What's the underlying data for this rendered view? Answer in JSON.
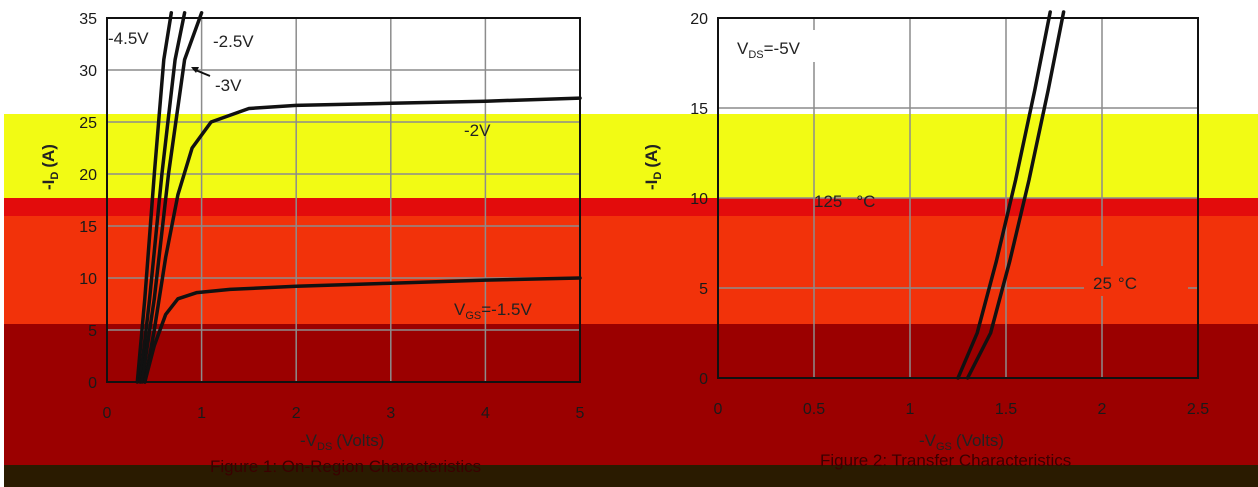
{
  "colors": {
    "band_yellow": "#f2fb14",
    "band_red": "#f2320a",
    "band_red_top": "#e30c0c",
    "band_dark": "#9b0000",
    "band_black": "#2a1b00",
    "curve": "#111111",
    "grid": "#8c8c8c"
  },
  "chart_data": [
    {
      "type": "line",
      "xlabel": "-V",
      "xlabel_sub": "DS",
      "xlabel_unit": "(Volts)",
      "ylabel": "-I",
      "ylabel_sub": "D",
      "ylabel_unit": "(A)",
      "xlim": [
        0,
        5
      ],
      "ylim": [
        0,
        35
      ],
      "x_ticks": [
        "0",
        "1",
        "2",
        "3",
        "4",
        "5"
      ],
      "y_ticks": [
        "0",
        "5",
        "10",
        "15",
        "20",
        "25",
        "30",
        "35"
      ],
      "grid": true,
      "annotations": [
        "-4.5V",
        "-2.5V",
        "-3V",
        "-2V",
        "V",
        "GS",
        "=-1.5V"
      ],
      "caption": "Figure 1: On-Region Characteristics",
      "series": [
        {
          "name": "-4.5V",
          "x": [
            0.32,
            0.4,
            0.5,
            0.6,
            0.68
          ],
          "y": [
            0,
            8,
            20,
            31,
            36
          ]
        },
        {
          "name": "-3V",
          "x": [
            0.35,
            0.45,
            0.58,
            0.72,
            0.82
          ],
          "y": [
            0,
            8,
            20,
            31,
            36
          ]
        },
        {
          "name": "-2.5V",
          "x": [
            0.37,
            0.5,
            0.65,
            0.82,
            1.0
          ],
          "y": [
            0,
            8,
            20,
            31,
            36
          ]
        },
        {
          "name": "-2V",
          "x": [
            0.4,
            0.5,
            0.62,
            0.75,
            0.9,
            1.1,
            1.5,
            2.0,
            3.0,
            4.0,
            5.0
          ],
          "y": [
            0,
            5,
            12,
            18,
            22.5,
            25,
            26.3,
            26.6,
            26.8,
            27.0,
            27.3
          ]
        },
        {
          "name": "=-1.5V",
          "x": [
            0.4,
            0.5,
            0.62,
            0.75,
            0.95,
            1.3,
            2.0,
            3.0,
            4.0,
            5.0
          ],
          "y": [
            0,
            3.5,
            6.5,
            8.0,
            8.6,
            8.9,
            9.2,
            9.5,
            9.8,
            10.0
          ]
        }
      ]
    },
    {
      "type": "line",
      "xlabel": "-V",
      "xlabel_sub": "GS",
      "xlabel_unit": "(Volts)",
      "ylabel": "-I",
      "ylabel_sub": "D",
      "ylabel_unit": "(A)",
      "xlim": [
        0,
        2.5
      ],
      "ylim": [
        0,
        20
      ],
      "x_ticks": [
        "0",
        "0.5",
        "1",
        "1.5",
        "2",
        "2.5"
      ],
      "y_ticks": [
        "0",
        "5",
        "10",
        "15",
        "20"
      ],
      "grid": true,
      "annotations": [
        "V",
        "DS",
        "=-5V",
        "125",
        "°C",
        "25",
        "°C"
      ],
      "caption": "Figure 2: Transfer Characteristics",
      "series": [
        {
          "name": "125°C",
          "x": [
            1.25,
            1.35,
            1.45,
            1.55,
            1.65,
            1.73
          ],
          "y": [
            0,
            2.5,
            6.5,
            11,
            16,
            20.5
          ]
        },
        {
          "name": "25°C",
          "x": [
            1.3,
            1.42,
            1.52,
            1.62,
            1.72,
            1.8
          ],
          "y": [
            0,
            2.5,
            6.5,
            11,
            16,
            20.5
          ]
        }
      ]
    }
  ]
}
